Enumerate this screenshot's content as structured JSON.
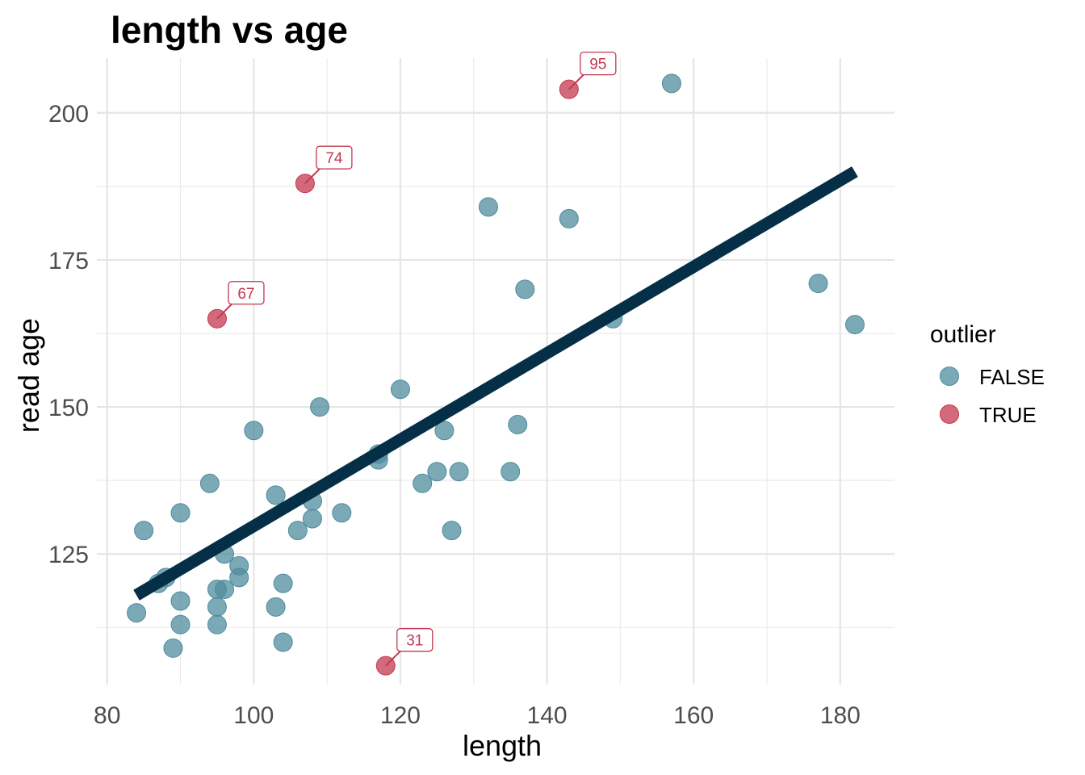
{
  "chart_data": {
    "type": "scatter",
    "title": "length vs age",
    "xlabel": "length",
    "ylabel": "read age",
    "xlim": [
      78.6,
      187.4
    ],
    "ylim": [
      102.8,
      209.3
    ],
    "x_ticks": [
      80,
      100,
      120,
      140,
      160,
      180
    ],
    "y_ticks": [
      125,
      150,
      175,
      200
    ],
    "grid": true,
    "legend": {
      "title": "outlier",
      "position": "right",
      "entries": [
        {
          "label": "FALSE",
          "color": "#4f8c9d"
        },
        {
          "label": "TRUE",
          "color": "#c4384f"
        }
      ]
    },
    "series": [
      {
        "name": "FALSE",
        "color": "#4f8c9d",
        "points": [
          {
            "x": 84,
            "y": 115
          },
          {
            "x": 85,
            "y": 129
          },
          {
            "x": 87,
            "y": 120
          },
          {
            "x": 88,
            "y": 121
          },
          {
            "x": 89,
            "y": 109
          },
          {
            "x": 90,
            "y": 132
          },
          {
            "x": 90,
            "y": 117
          },
          {
            "x": 90,
            "y": 113
          },
          {
            "x": 94,
            "y": 137
          },
          {
            "x": 95,
            "y": 119
          },
          {
            "x": 95,
            "y": 116
          },
          {
            "x": 95,
            "y": 113
          },
          {
            "x": 96,
            "y": 125
          },
          {
            "x": 96,
            "y": 119
          },
          {
            "x": 98,
            "y": 123
          },
          {
            "x": 98,
            "y": 121
          },
          {
            "x": 100,
            "y": 146
          },
          {
            "x": 103,
            "y": 135
          },
          {
            "x": 103,
            "y": 116
          },
          {
            "x": 104,
            "y": 120
          },
          {
            "x": 104,
            "y": 110
          },
          {
            "x": 106,
            "y": 129
          },
          {
            "x": 108,
            "y": 134
          },
          {
            "x": 108,
            "y": 131
          },
          {
            "x": 109,
            "y": 150
          },
          {
            "x": 112,
            "y": 132
          },
          {
            "x": 117,
            "y": 142
          },
          {
            "x": 117,
            "y": 141
          },
          {
            "x": 120,
            "y": 153
          },
          {
            "x": 123,
            "y": 137
          },
          {
            "x": 125,
            "y": 139
          },
          {
            "x": 126,
            "y": 146
          },
          {
            "x": 127,
            "y": 129
          },
          {
            "x": 128,
            "y": 139
          },
          {
            "x": 132,
            "y": 184
          },
          {
            "x": 135,
            "y": 139
          },
          {
            "x": 136,
            "y": 147
          },
          {
            "x": 137,
            "y": 170
          },
          {
            "x": 143,
            "y": 182
          },
          {
            "x": 149,
            "y": 165
          },
          {
            "x": 157,
            "y": 205
          },
          {
            "x": 177,
            "y": 171
          },
          {
            "x": 182,
            "y": 164
          }
        ]
      },
      {
        "name": "TRUE",
        "color": "#c4384f",
        "points": [
          {
            "x": 95,
            "y": 165,
            "label": "67"
          },
          {
            "x": 107,
            "y": 188,
            "label": "74"
          },
          {
            "x": 118,
            "y": 106,
            "label": "31"
          },
          {
            "x": 143,
            "y": 204,
            "label": "95"
          }
        ]
      }
    ],
    "trend_line": {
      "color": "#042f47",
      "points": [
        {
          "x": 84,
          "y": 118
        },
        {
          "x": 182,
          "y": 190
        }
      ]
    }
  }
}
